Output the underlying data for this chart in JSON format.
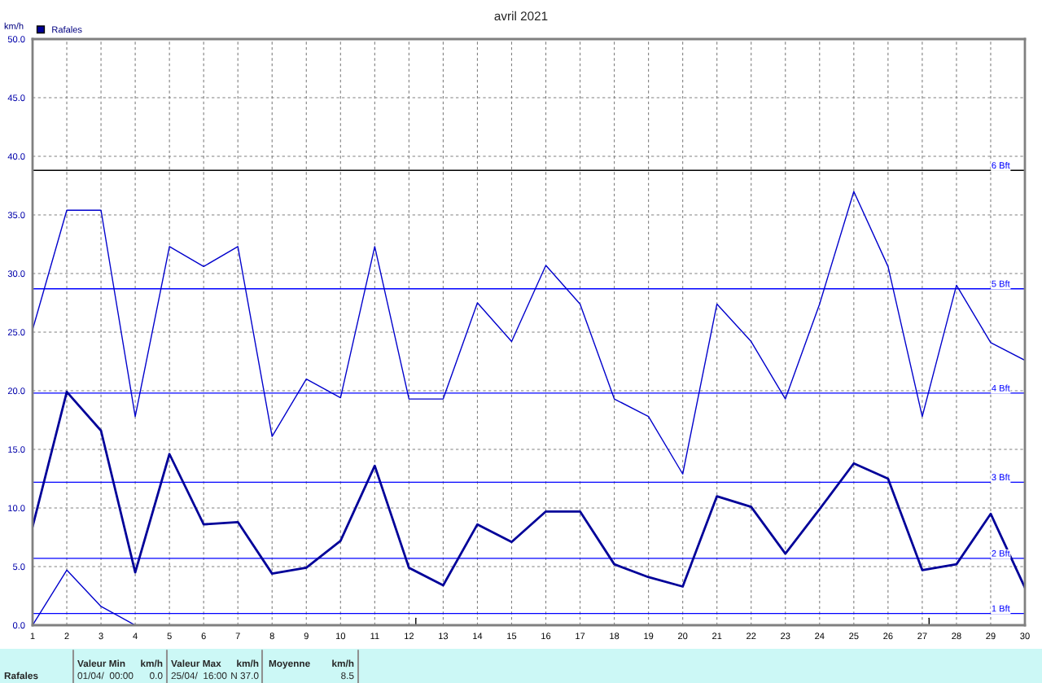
{
  "chart_data": {
    "type": "line",
    "title": "avril 2021",
    "ylabel": "km/h",
    "x": [
      1,
      2,
      3,
      4,
      5,
      6,
      7,
      8,
      9,
      10,
      11,
      12,
      13,
      14,
      15,
      16,
      17,
      18,
      19,
      20,
      21,
      22,
      23,
      24,
      25,
      26,
      27,
      28,
      29,
      30
    ],
    "series": [
      {
        "color": "#0000cc",
        "values": [
          25.2,
          35.4,
          35.4,
          17.8,
          32.3,
          30.6,
          32.3,
          16.1,
          21.0,
          19.4,
          32.3,
          19.3,
          19.3,
          27.5,
          24.2,
          30.7,
          27.4,
          19.3,
          17.8,
          12.9,
          27.4,
          24.2,
          19.3,
          27.4,
          37.0,
          30.6,
          17.8,
          29.0,
          24.1,
          22.6
        ]
      },
      {
        "name": "Rafales",
        "color": "#000099",
        "values": [
          8.4,
          19.9,
          16.6,
          4.5,
          14.6,
          8.6,
          8.8,
          4.4,
          4.9,
          7.2,
          13.6,
          4.9,
          3.4,
          8.6,
          7.1,
          9.7,
          9.7,
          5.2,
          4.1,
          3.3,
          11.0,
          10.1,
          6.1,
          9.9,
          13.8,
          12.5,
          4.7,
          5.2,
          9.5,
          3.2
        ]
      },
      {
        "color": "#0000cc",
        "values": [
          0,
          4.7,
          1.6,
          0,
          null,
          null,
          null,
          null,
          null,
          null,
          null,
          null,
          null,
          null,
          null,
          null,
          null,
          null,
          null,
          null,
          null,
          null,
          null,
          null,
          null,
          null,
          null,
          null,
          null,
          null
        ]
      }
    ],
    "xlim": [
      1,
      30
    ],
    "xticks": [
      1,
      2,
      3,
      4,
      5,
      6,
      7,
      8,
      9,
      10,
      11,
      12,
      13,
      14,
      15,
      16,
      17,
      18,
      19,
      20,
      21,
      22,
      23,
      24,
      25,
      26,
      27,
      28,
      29,
      30
    ],
    "ylim": [
      0,
      50
    ],
    "yticks": [
      {
        "value": 0,
        "label": "0.0"
      },
      {
        "value": 5,
        "label": "5.0"
      },
      {
        "value": 10,
        "label": "10.0"
      },
      {
        "value": 15,
        "label": "15.0"
      },
      {
        "value": 20,
        "label": "20.0"
      },
      {
        "value": 25,
        "label": "25.0"
      },
      {
        "value": 30,
        "label": "30.0"
      },
      {
        "value": 35,
        "label": "35.0"
      },
      {
        "value": 40,
        "label": "40.0"
      },
      {
        "value": 45,
        "label": "45.0"
      },
      {
        "value": 50,
        "label": "50.0"
      }
    ],
    "ref_lines": [
      {
        "axis": "y",
        "value": 1.0,
        "label": "1 Bft",
        "color": "#0000ff"
      },
      {
        "axis": "y",
        "value": 5.7,
        "label": "2 Bft",
        "color": "#0000ff"
      },
      {
        "axis": "y",
        "value": 12.2,
        "label": "3 Bft",
        "color": "#0000ff"
      },
      {
        "axis": "y",
        "value": 19.8,
        "label": "4 Bft",
        "color": "#0000ff"
      },
      {
        "axis": "y",
        "value": 28.7,
        "label": "5 Bft",
        "color": "#0000ff"
      },
      {
        "axis": "y",
        "value": 38.8,
        "label": "6 Bft",
        "color": "#000000"
      }
    ],
    "annotations": [
      "Rafales",
      "Valeur Min",
      "km/h",
      "01/04/  00:00",
      "0.0",
      "Valeur Max",
      "km/h",
      "25/04/  16:00",
      "N 37.0",
      "Moyenne",
      "km/h",
      "8.5"
    ],
    "grid": true,
    "legend": "top left",
    "marker": "none",
    "line_style": "solid"
  }
}
